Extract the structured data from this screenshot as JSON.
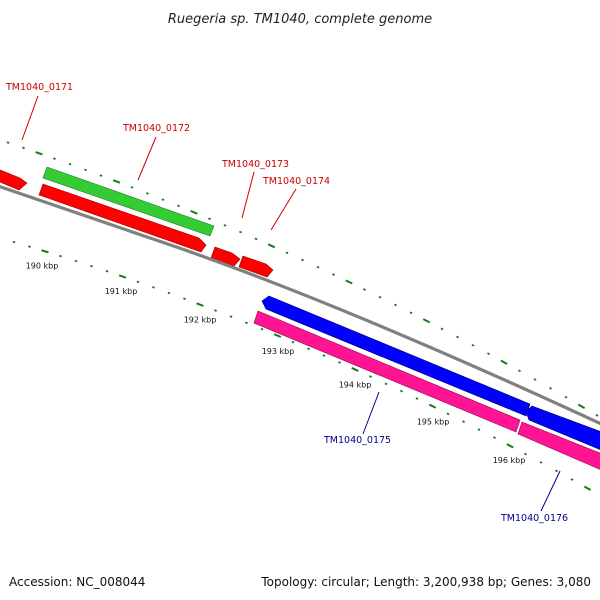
{
  "title": "Ruegeria sp. TM1040, complete genome",
  "footer": {
    "accession": "Accession: NC_008044",
    "summary": "Topology: circular; Length: 3,200,938 bp; Genes: 3,080"
  },
  "colors": {
    "background": "#ffffff",
    "backbone": "#808080",
    "tick": "#1a7a1a",
    "label_red": "#cc0000",
    "label_blue": "#00008b",
    "gene_red": "#ff0000",
    "gene_green": "#33cc33",
    "gene_blue": "#0000ff",
    "gene_magenta": "#ff1493"
  },
  "ticks": [
    {
      "label": "190 kbp"
    },
    {
      "label": "191 kbp"
    },
    {
      "label": "192 kbp"
    },
    {
      "label": "193 kbp"
    },
    {
      "label": "194 kbp"
    },
    {
      "label": "195 kbp"
    },
    {
      "label": "196 kbp"
    }
  ],
  "genes": [
    {
      "id": "TM1040_0171",
      "strand": "+",
      "color": "gene_red",
      "label_color": "label_red"
    },
    {
      "id": "TM1040_0172",
      "strand": "+",
      "color": "gene_green",
      "label_color": "label_red"
    },
    {
      "id": "TM1040_0173",
      "strand": "+",
      "color": "gene_red",
      "label_color": "label_red"
    },
    {
      "id": "TM1040_0174",
      "strand": "+",
      "color": "gene_red",
      "label_color": "label_red"
    },
    {
      "id": "TM1040_0175",
      "strand": "-",
      "color": "gene_blue",
      "label_color": "label_blue"
    },
    {
      "id": "TM1040_0176",
      "strand": "-",
      "color": "gene_blue",
      "label_color": "label_blue"
    }
  ]
}
